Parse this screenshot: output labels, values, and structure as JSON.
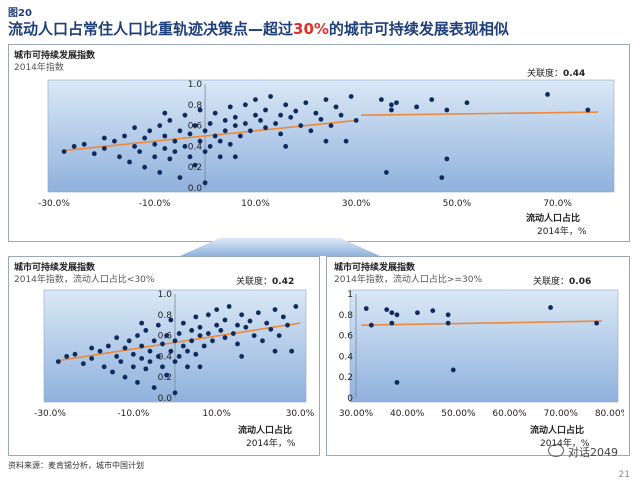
{
  "header": {
    "figure_label": "图20",
    "title_before": "流动人口占常住人口比重轨迹决策点—超过",
    "title_highlight": "30%",
    "title_after": "的城市可持续发展表现相似"
  },
  "footer": {
    "source": "资料来源：麦肯锡分析，城市中国计划",
    "page_number": "21",
    "brand": "对话2049"
  },
  "colors": {
    "title": "#1f3f7a",
    "highlight": "#e0302a",
    "dot": "#0f2a5c",
    "trend": "#f0883a",
    "plot_bg_top": "#dbe8f6",
    "plot_bg_bottom": "#8fb1dc"
  },
  "panels": {
    "top": {
      "title": "城市可持续发展指数",
      "subtitle": "2014年指数",
      "corr_label": "关联度：",
      "corr_value": "0.44",
      "xlabel": "流动人口占比",
      "xunit": "2014年，%"
    },
    "bottom_left": {
      "title": "城市可持续发展指数",
      "subtitle": "2014年指数，流动人口占比<30%",
      "corr_label": "关联度：",
      "corr_value": "0.42",
      "xlabel": "流动人口占比",
      "xunit": "2014年，%"
    },
    "bottom_right": {
      "title": "城市可持续发展指数",
      "subtitle": "2014年指数，流动人口占比>=30%",
      "corr_label": "关联度：",
      "corr_value": "0.06",
      "xlabel": "流动人口占比",
      "xunit": "2014年，%"
    }
  },
  "chart_data": [
    {
      "type": "scatter",
      "id": "top",
      "xlim": [
        -30,
        80
      ],
      "ylim": [
        0,
        1
      ],
      "x_ticks": [
        -30,
        -10,
        10,
        30,
        50,
        70
      ],
      "x_tick_labels": [
        "-30.0%",
        "-10.0%",
        "10.0%",
        "30.0%",
        "50.0%",
        "70.0%"
      ],
      "y_ticks": [
        0,
        0.2,
        0.4,
        0.6,
        0.8,
        1.0
      ],
      "y_tick_labels": [
        "0.0",
        "0.2",
        "0.4",
        "0.6",
        "0.8",
        "1.0"
      ],
      "y_axis_at_x": 0,
      "grid": false,
      "trend": [
        [
          -28,
          0.36
        ],
        [
          30,
          0.65
        ]
      ],
      "trend2": [
        [
          31,
          0.7
        ],
        [
          78,
          0.73
        ]
      ],
      "points": [
        [
          -28,
          0.35
        ],
        [
          -26,
          0.4
        ],
        [
          -24,
          0.42
        ],
        [
          -22,
          0.33
        ],
        [
          -20,
          0.38
        ],
        [
          -18,
          0.45
        ],
        [
          -17,
          0.3
        ],
        [
          -16,
          0.5
        ],
        [
          -15,
          0.25
        ],
        [
          -14,
          0.4
        ],
        [
          -13,
          0.35
        ],
        [
          -12,
          0.48
        ],
        [
          -12,
          0.2
        ],
        [
          -11,
          0.55
        ],
        [
          -10,
          0.3
        ],
        [
          -10,
          0.42
        ],
        [
          -9,
          0.6
        ],
        [
          -9,
          0.15
        ],
        [
          -8,
          0.38
        ],
        [
          -8,
          0.5
        ],
        [
          -7,
          0.28
        ],
        [
          -7,
          0.65
        ],
        [
          -6,
          0.45
        ],
        [
          -6,
          0.35
        ],
        [
          -5,
          0.55
        ],
        [
          -5,
          0.1
        ],
        [
          -4,
          0.4
        ],
        [
          -4,
          0.7
        ],
        [
          -3,
          0.3
        ],
        [
          -3,
          0.52
        ],
        [
          -2,
          0.6
        ],
        [
          -2,
          0.22
        ],
        [
          -1,
          0.45
        ],
        [
          -1,
          0.75
        ],
        [
          0,
          0.35
        ],
        [
          0,
          0.55
        ],
        [
          0,
          0.05
        ],
        [
          1,
          0.62
        ],
        [
          1,
          0.4
        ],
        [
          2,
          0.5
        ],
        [
          2,
          0.72
        ],
        [
          3,
          0.45
        ],
        [
          3,
          0.3
        ],
        [
          4,
          0.65
        ],
        [
          4,
          0.55
        ],
        [
          5,
          0.78
        ],
        [
          5,
          0.42
        ],
        [
          6,
          0.6
        ],
        [
          6,
          0.68
        ],
        [
          7,
          0.5
        ],
        [
          8,
          0.8
        ],
        [
          8,
          0.62
        ],
        [
          9,
          0.55
        ],
        [
          10,
          0.7
        ],
        [
          10,
          0.85
        ],
        [
          11,
          0.65
        ],
        [
          12,
          0.58
        ],
        [
          12,
          0.75
        ],
        [
          13,
          0.88
        ],
        [
          14,
          0.62
        ],
        [
          15,
          0.7
        ],
        [
          15,
          0.52
        ],
        [
          16,
          0.8
        ],
        [
          17,
          0.68
        ],
        [
          18,
          0.74
        ],
        [
          19,
          0.6
        ],
        [
          20,
          0.82
        ],
        [
          21,
          0.55
        ],
        [
          22,
          0.72
        ],
        [
          23,
          0.66
        ],
        [
          24,
          0.85
        ],
        [
          25,
          0.6
        ],
        [
          26,
          0.78
        ],
        [
          27,
          0.7
        ],
        [
          28,
          0.45
        ],
        [
          29,
          0.88
        ],
        [
          30,
          0.65
        ],
        [
          -14,
          0.58
        ],
        [
          -20,
          0.48
        ],
        [
          -8,
          0.72
        ],
        [
          6,
          0.3
        ],
        [
          16,
          0.4
        ],
        [
          24,
          0.45
        ],
        [
          35,
          0.85
        ],
        [
          37,
          0.75
        ],
        [
          37,
          0.8
        ],
        [
          38,
          0.82
        ],
        [
          36,
          0.15
        ],
        [
          42,
          0.78
        ],
        [
          45,
          0.85
        ],
        [
          48,
          0.75
        ],
        [
          48,
          0.28
        ],
        [
          47,
          0.1
        ],
        [
          52,
          0.82
        ],
        [
          68,
          0.9
        ],
        [
          76,
          0.75
        ]
      ]
    },
    {
      "type": "scatter",
      "id": "bottom_left",
      "xlim": [
        -30,
        30
      ],
      "ylim": [
        0,
        1
      ],
      "x_ticks": [
        -30,
        -10,
        10,
        30
      ],
      "x_tick_labels": [
        "-30.0%",
        "-10.0%",
        "10.0%",
        "30.0%"
      ],
      "y_ticks": [
        0,
        0.2,
        0.4,
        0.6,
        0.8,
        1.0
      ],
      "y_tick_labels": [
        "0.0",
        "0.2",
        "0.4",
        "0.6",
        "0.8",
        "1.0"
      ],
      "y_axis_at_x": 0,
      "grid": false,
      "trend": [
        [
          -28,
          0.36
        ],
        [
          30,
          0.72
        ]
      ],
      "points": [
        [
          -28,
          0.35
        ],
        [
          -26,
          0.4
        ],
        [
          -24,
          0.42
        ],
        [
          -22,
          0.33
        ],
        [
          -20,
          0.38
        ],
        [
          -18,
          0.45
        ],
        [
          -17,
          0.3
        ],
        [
          -16,
          0.5
        ],
        [
          -15,
          0.25
        ],
        [
          -14,
          0.4
        ],
        [
          -13,
          0.35
        ],
        [
          -12,
          0.48
        ],
        [
          -12,
          0.2
        ],
        [
          -11,
          0.55
        ],
        [
          -10,
          0.3
        ],
        [
          -10,
          0.42
        ],
        [
          -9,
          0.6
        ],
        [
          -9,
          0.15
        ],
        [
          -8,
          0.38
        ],
        [
          -8,
          0.5
        ],
        [
          -7,
          0.28
        ],
        [
          -7,
          0.65
        ],
        [
          -6,
          0.45
        ],
        [
          -6,
          0.35
        ],
        [
          -5,
          0.55
        ],
        [
          -5,
          0.1
        ],
        [
          -4,
          0.4
        ],
        [
          -4,
          0.7
        ],
        [
          -3,
          0.3
        ],
        [
          -3,
          0.52
        ],
        [
          -2,
          0.6
        ],
        [
          -2,
          0.22
        ],
        [
          -1,
          0.45
        ],
        [
          -1,
          0.75
        ],
        [
          0,
          0.35
        ],
        [
          0,
          0.55
        ],
        [
          0,
          0.05
        ],
        [
          1,
          0.62
        ],
        [
          1,
          0.4
        ],
        [
          2,
          0.5
        ],
        [
          2,
          0.72
        ],
        [
          3,
          0.45
        ],
        [
          3,
          0.3
        ],
        [
          4,
          0.65
        ],
        [
          4,
          0.55
        ],
        [
          5,
          0.78
        ],
        [
          5,
          0.42
        ],
        [
          6,
          0.6
        ],
        [
          6,
          0.68
        ],
        [
          7,
          0.5
        ],
        [
          8,
          0.8
        ],
        [
          8,
          0.62
        ],
        [
          9,
          0.55
        ],
        [
          10,
          0.7
        ],
        [
          10,
          0.85
        ],
        [
          11,
          0.65
        ],
        [
          12,
          0.58
        ],
        [
          12,
          0.75
        ],
        [
          13,
          0.88
        ],
        [
          14,
          0.62
        ],
        [
          15,
          0.7
        ],
        [
          15,
          0.52
        ],
        [
          16,
          0.8
        ],
        [
          17,
          0.68
        ],
        [
          18,
          0.74
        ],
        [
          19,
          0.6
        ],
        [
          20,
          0.82
        ],
        [
          21,
          0.55
        ],
        [
          22,
          0.72
        ],
        [
          23,
          0.66
        ],
        [
          24,
          0.85
        ],
        [
          25,
          0.6
        ],
        [
          26,
          0.78
        ],
        [
          27,
          0.7
        ],
        [
          28,
          0.45
        ],
        [
          29,
          0.88
        ],
        [
          -14,
          0.58
        ],
        [
          -20,
          0.48
        ],
        [
          -8,
          0.72
        ],
        [
          6,
          0.3
        ],
        [
          16,
          0.4
        ],
        [
          24,
          0.45
        ]
      ]
    },
    {
      "type": "scatter",
      "id": "bottom_right",
      "xlim": [
        30,
        80
      ],
      "ylim": [
        0,
        1
      ],
      "x_ticks": [
        30,
        40,
        50,
        60,
        70,
        80
      ],
      "x_tick_labels": [
        "30.00%",
        "40.00%",
        "50.00%",
        "60.00%",
        "70.00%",
        "80.00%"
      ],
      "y_ticks": [
        0,
        0.2,
        0.4,
        0.6,
        0.8,
        1.0
      ],
      "y_tick_labels": [
        "0",
        "0.2",
        "0.4",
        "0.6",
        "0.8",
        "1"
      ],
      "grid": false,
      "trend": [
        [
          31,
          0.7
        ],
        [
          78,
          0.74
        ]
      ],
      "points": [
        [
          32,
          0.86
        ],
        [
          33,
          0.7
        ],
        [
          36,
          0.85
        ],
        [
          37,
          0.82
        ],
        [
          38,
          0.8
        ],
        [
          37,
          0.72
        ],
        [
          38,
          0.15
        ],
        [
          42,
          0.82
        ],
        [
          45,
          0.84
        ],
        [
          48,
          0.8
        ],
        [
          48,
          0.72
        ],
        [
          49,
          0.27
        ],
        [
          68,
          0.87
        ],
        [
          77,
          0.72
        ]
      ]
    }
  ]
}
